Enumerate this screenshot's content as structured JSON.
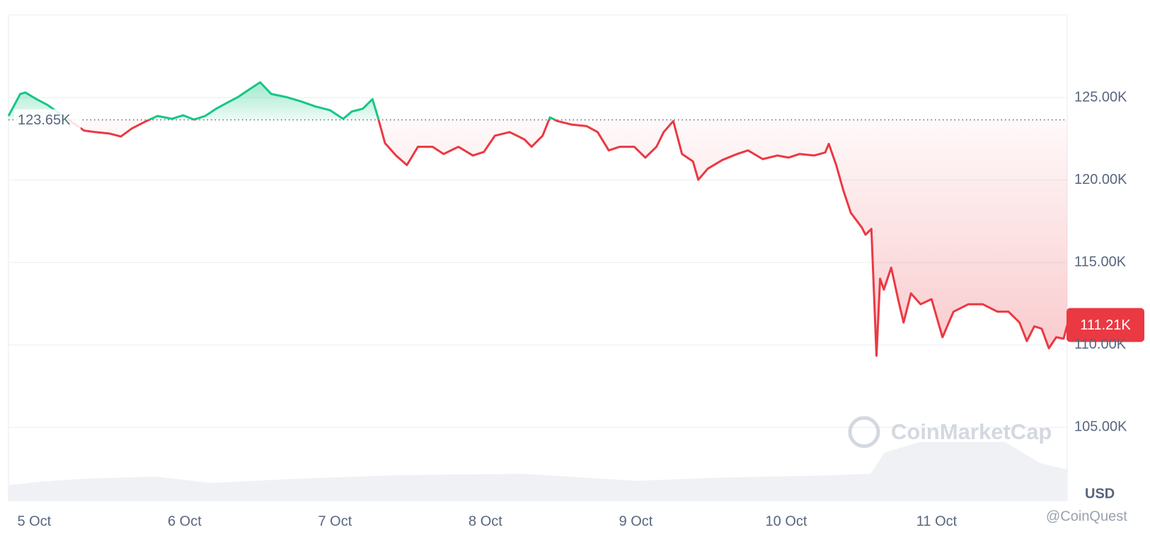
{
  "chart_data": {
    "type": "line",
    "x": [
      4.829,
      4.907,
      4.941,
      5.015,
      5.088,
      5.332,
      5.405,
      5.502,
      5.576,
      5.649,
      5.746,
      5.82,
      5.917,
      5.99,
      6.063,
      6.137,
      6.21,
      6.283,
      6.356,
      6.429,
      6.502,
      6.576,
      6.673,
      6.771,
      6.868,
      6.966,
      7.054,
      7.112,
      7.185,
      7.249,
      7.283,
      7.332,
      7.405,
      7.478,
      7.551,
      7.649,
      7.722,
      7.82,
      7.917,
      7.99,
      8.063,
      8.161,
      8.259,
      8.307,
      8.38,
      8.429,
      8.478,
      8.576,
      8.673,
      8.746,
      8.82,
      8.893,
      8.99,
      9.063,
      9.137,
      9.185,
      9.249,
      9.307,
      9.38,
      9.415,
      9.478,
      9.576,
      9.673,
      9.746,
      9.844,
      9.941,
      10.015,
      10.088,
      10.185,
      10.259,
      10.283,
      10.332,
      10.38,
      10.429,
      10.502,
      10.527,
      10.566,
      10.6,
      10.624,
      10.649,
      10.698,
      10.746,
      10.78,
      10.829,
      10.893,
      10.966,
      11.039,
      11.112,
      11.21,
      11.307,
      11.405,
      11.478,
      11.551,
      11.6,
      11.649,
      11.698,
      11.746,
      11.795,
      11.844,
      11.868
    ],
    "values": [
      123890,
      125220,
      125310,
      124910,
      124560,
      123000,
      122910,
      122820,
      122640,
      123130,
      123580,
      123890,
      123710,
      123930,
      123670,
      123890,
      124330,
      124690,
      125040,
      125490,
      125930,
      125220,
      125040,
      124780,
      124470,
      124240,
      123710,
      124160,
      124330,
      124910,
      123890,
      122240,
      121490,
      120910,
      122020,
      122020,
      121580,
      122020,
      121490,
      121710,
      122690,
      122910,
      122470,
      122020,
      122690,
      123800,
      123580,
      123360,
      123270,
      122910,
      121800,
      122020,
      122020,
      121360,
      122020,
      122910,
      123580,
      121580,
      121130,
      120020,
      120690,
      121220,
      121580,
      121800,
      121270,
      121490,
      121360,
      121580,
      121490,
      121670,
      122200,
      120910,
      119360,
      118020,
      117130,
      116690,
      117040,
      109350,
      114020,
      113360,
      114690,
      112690,
      111360,
      113130,
      112470,
      112780,
      110470,
      112020,
      112470,
      112470,
      112020,
      112020,
      111360,
      110240,
      111130,
      110990,
      109800,
      110470,
      110380,
      111210
    ],
    "xlim": [
      4.829,
      11.868
    ],
    "xticks": [
      {
        "value": 5,
        "label": "5 Oct"
      },
      {
        "value": 6,
        "label": "6 Oct"
      },
      {
        "value": 7,
        "label": "7 Oct"
      },
      {
        "value": 8,
        "label": "8 Oct"
      },
      {
        "value": 9,
        "label": "9 Oct"
      },
      {
        "value": 10,
        "label": "10 Oct"
      },
      {
        "value": 11,
        "label": "11 Oct"
      }
    ],
    "ylim": [
      100560,
      130020
    ],
    "yticks": [
      {
        "value": 105000,
        "label": "105.00K"
      },
      {
        "value": 110000,
        "label": "110.00K"
      },
      {
        "value": 115000,
        "label": "115.00K"
      },
      {
        "value": 120000,
        "label": "120.00K"
      },
      {
        "value": 125000,
        "label": "125.00K"
      }
    ],
    "y_unit": "USD",
    "baseline": {
      "value": 123650,
      "label": "123.65K"
    },
    "current_price": {
      "value": 111210,
      "label": "111.21K"
    },
    "color_above": "#16c784",
    "color_below": "#ea3943",
    "grid": true,
    "watermark": "CoinMarketCap",
    "credit": "@CoinQuest"
  }
}
